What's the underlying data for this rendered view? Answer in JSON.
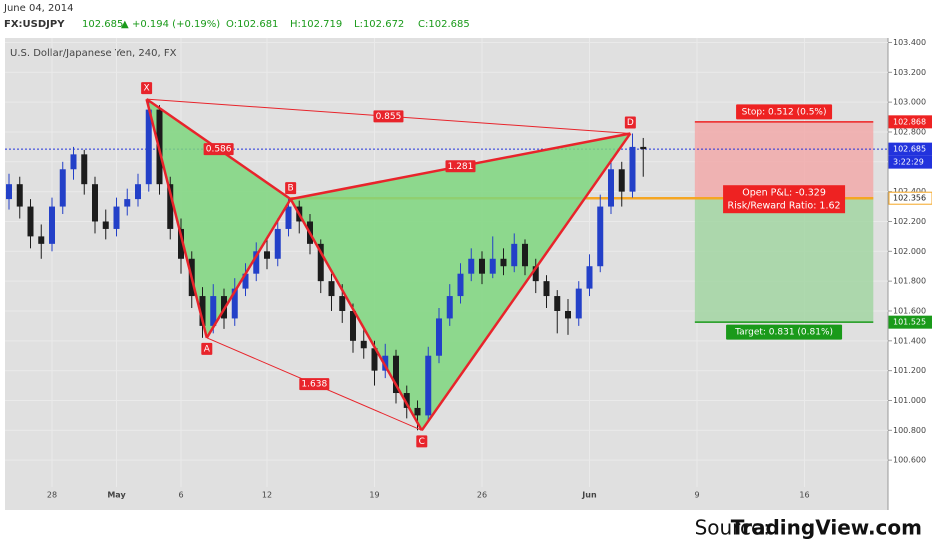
{
  "header": {
    "date": "June 04, 2014",
    "symbol": "FX:USDJPY",
    "price": 102.685,
    "arrow": "▲",
    "change": "+0.194 (+0.19%)",
    "open": "O:102.681",
    "high": "H:102.719",
    "low": "L:102.672",
    "close": "C:102.685"
  },
  "chart_data": {
    "type": "candlestick",
    "title": "U.S. Dollar/Japanese Yen, 240, FX",
    "up_color": "#2340c8",
    "down_color": "#1c1c1c",
    "xlim": [
      -2.186,
      38.884
    ],
    "xticks": [
      {
        "value": 0,
        "label": "28"
      },
      {
        "value": 3,
        "label": "May"
      },
      {
        "value": 6,
        "label": "6"
      },
      {
        "value": 10,
        "label": "12"
      },
      {
        "value": 15,
        "label": "19"
      },
      {
        "value": 20,
        "label": "26"
      },
      {
        "value": 25,
        "label": "Jun"
      },
      {
        "value": 30,
        "label": "9"
      },
      {
        "value": 35,
        "label": "16"
      }
    ],
    "ylim": [
      100.42,
      103.43
    ],
    "yticks": [
      {
        "value": 100.6,
        "label": "100.600"
      },
      {
        "value": 100.8,
        "label": "100.800"
      },
      {
        "value": 101,
        "label": "101.000"
      },
      {
        "value": 101.2,
        "label": "101.200"
      },
      {
        "value": 101.4,
        "label": "101.400"
      },
      {
        "value": 101.6,
        "label": "101.600"
      },
      {
        "value": 101.8,
        "label": "101.800"
      },
      {
        "value": 102,
        "label": "102.000"
      },
      {
        "value": 102.2,
        "label": "102.200"
      },
      {
        "value": 102.4,
        "label": "102.400"
      },
      {
        "value": 102.6,
        "label": "102.600"
      },
      {
        "value": 102.8,
        "label": "102.800"
      },
      {
        "value": 103,
        "label": "103.000"
      },
      {
        "value": 103.2,
        "label": "103.200"
      },
      {
        "value": 103.4,
        "label": "103.400"
      }
    ],
    "grid": true,
    "x": [
      -2,
      -1.5,
      -1,
      -0.5,
      0,
      0.5,
      1,
      1.5,
      2,
      2.5,
      3,
      3.5,
      4,
      4.5,
      5,
      5.5,
      6,
      6.5,
      7,
      7.5,
      8,
      8.5,
      9,
      9.5,
      10,
      10.5,
      11,
      11.5,
      12,
      12.5,
      13,
      13.5,
      14,
      14.5,
      15,
      15.5,
      16,
      16.5,
      17,
      17.5,
      18,
      18.5,
      19,
      19.5,
      20,
      20.5,
      21,
      21.5,
      22,
      22.5,
      23,
      23.5,
      24,
      24.5,
      25,
      25.5,
      26,
      26.5,
      27,
      27.5
    ],
    "candles": [
      [
        102.35,
        102.52,
        102.28,
        102.45
      ],
      [
        102.45,
        102.5,
        102.22,
        102.3
      ],
      [
        102.3,
        102.35,
        102.02,
        102.1
      ],
      [
        102.1,
        102.18,
        101.95,
        102.05
      ],
      [
        102.05,
        102.36,
        102.0,
        102.3
      ],
      [
        102.3,
        102.6,
        102.25,
        102.55
      ],
      [
        102.55,
        102.7,
        102.48,
        102.65
      ],
      [
        102.65,
        102.68,
        102.38,
        102.45
      ],
      [
        102.45,
        102.5,
        102.12,
        102.2
      ],
      [
        102.2,
        102.28,
        102.08,
        102.15
      ],
      [
        102.15,
        102.36,
        102.1,
        102.3
      ],
      [
        102.3,
        102.42,
        102.24,
        102.35
      ],
      [
        102.35,
        102.52,
        102.3,
        102.45
      ],
      [
        102.45,
        103.02,
        102.4,
        102.95
      ],
      [
        102.95,
        102.98,
        102.38,
        102.45
      ],
      [
        102.45,
        102.5,
        102.08,
        102.15
      ],
      [
        102.15,
        102.22,
        101.85,
        101.95
      ],
      [
        101.95,
        102.0,
        101.62,
        101.7
      ],
      [
        101.7,
        101.76,
        101.42,
        101.5
      ],
      [
        101.5,
        101.78,
        101.45,
        101.7
      ],
      [
        101.7,
        101.75,
        101.48,
        101.55
      ],
      [
        101.55,
        101.82,
        101.5,
        101.75
      ],
      [
        101.75,
        101.92,
        101.7,
        101.85
      ],
      [
        101.85,
        102.06,
        101.8,
        102.0
      ],
      [
        102.0,
        102.08,
        101.88,
        101.95
      ],
      [
        101.95,
        102.22,
        101.9,
        102.15
      ],
      [
        102.15,
        102.35,
        102.1,
        102.3
      ],
      [
        102.3,
        102.34,
        102.12,
        102.2
      ],
      [
        102.2,
        102.25,
        101.98,
        102.05
      ],
      [
        102.05,
        102.08,
        101.72,
        101.8
      ],
      [
        101.8,
        101.85,
        101.6,
        101.7
      ],
      [
        101.7,
        101.78,
        101.52,
        101.6
      ],
      [
        101.6,
        101.65,
        101.32,
        101.4
      ],
      [
        101.4,
        101.48,
        101.28,
        101.35
      ],
      [
        101.35,
        101.4,
        101.1,
        101.2
      ],
      [
        101.2,
        101.38,
        101.15,
        101.3
      ],
      [
        101.3,
        101.34,
        100.98,
        101.05
      ],
      [
        101.05,
        101.1,
        100.88,
        100.95
      ],
      [
        100.95,
        101.0,
        100.8,
        100.9
      ],
      [
        100.9,
        101.36,
        100.86,
        101.3
      ],
      [
        101.3,
        101.62,
        101.25,
        101.55
      ],
      [
        101.55,
        101.78,
        101.5,
        101.7
      ],
      [
        101.7,
        101.92,
        101.65,
        101.85
      ],
      [
        101.85,
        102.02,
        101.8,
        101.95
      ],
      [
        101.95,
        102.0,
        101.78,
        101.85
      ],
      [
        101.85,
        102.1,
        101.82,
        101.95
      ],
      [
        101.95,
        102.02,
        101.84,
        101.9
      ],
      [
        101.9,
        102.12,
        101.86,
        102.05
      ],
      [
        102.05,
        102.08,
        101.84,
        101.9
      ],
      [
        101.9,
        101.95,
        101.72,
        101.8
      ],
      [
        101.8,
        101.84,
        101.62,
        101.7
      ],
      [
        101.7,
        101.74,
        101.45,
        101.6
      ],
      [
        101.6,
        101.68,
        101.44,
        101.55
      ],
      [
        101.55,
        101.8,
        101.5,
        101.75
      ],
      [
        101.75,
        101.98,
        101.7,
        101.9
      ],
      [
        101.9,
        102.38,
        101.86,
        102.3
      ],
      [
        102.3,
        102.62,
        102.25,
        102.55
      ],
      [
        102.55,
        102.6,
        102.3,
        102.4
      ],
      [
        102.4,
        102.79,
        102.36,
        102.7
      ],
      [
        102.7,
        102.76,
        102.5,
        102.685
      ]
    ],
    "pattern": {
      "color": "#e8242b",
      "fill": "#7ed67e",
      "points": [
        {
          "label": "X",
          "x": 4.4,
          "y": 103.02
        },
        {
          "label": "A",
          "x": 7.2,
          "y": 101.42
        },
        {
          "label": "B",
          "x": 11.1,
          "y": 102.35
        },
        {
          "label": "C",
          "x": 17.2,
          "y": 100.8
        },
        {
          "label": "D",
          "x": 26.9,
          "y": 102.79
        }
      ],
      "ratios": {
        "XB": 0.586,
        "XD": 0.855,
        "BD": 1.281,
        "AC": 1.638
      }
    },
    "position": {
      "x_start": 29.9,
      "x_end": 38.2,
      "entry": 102.356,
      "stop": 102.868,
      "target": 101.525,
      "current": 102.685,
      "stop_label": "Stop: 0.512 (0.5%)",
      "pnl_label": "Open P&L: -0.329",
      "rr_label": "Risk/Reward Ratio: 1.62",
      "target_label": "Target: 0.831 (0.81%)",
      "timer": "3:22:29"
    }
  },
  "source": {
    "prefix": "Source:",
    "name": "TradingView.com"
  }
}
